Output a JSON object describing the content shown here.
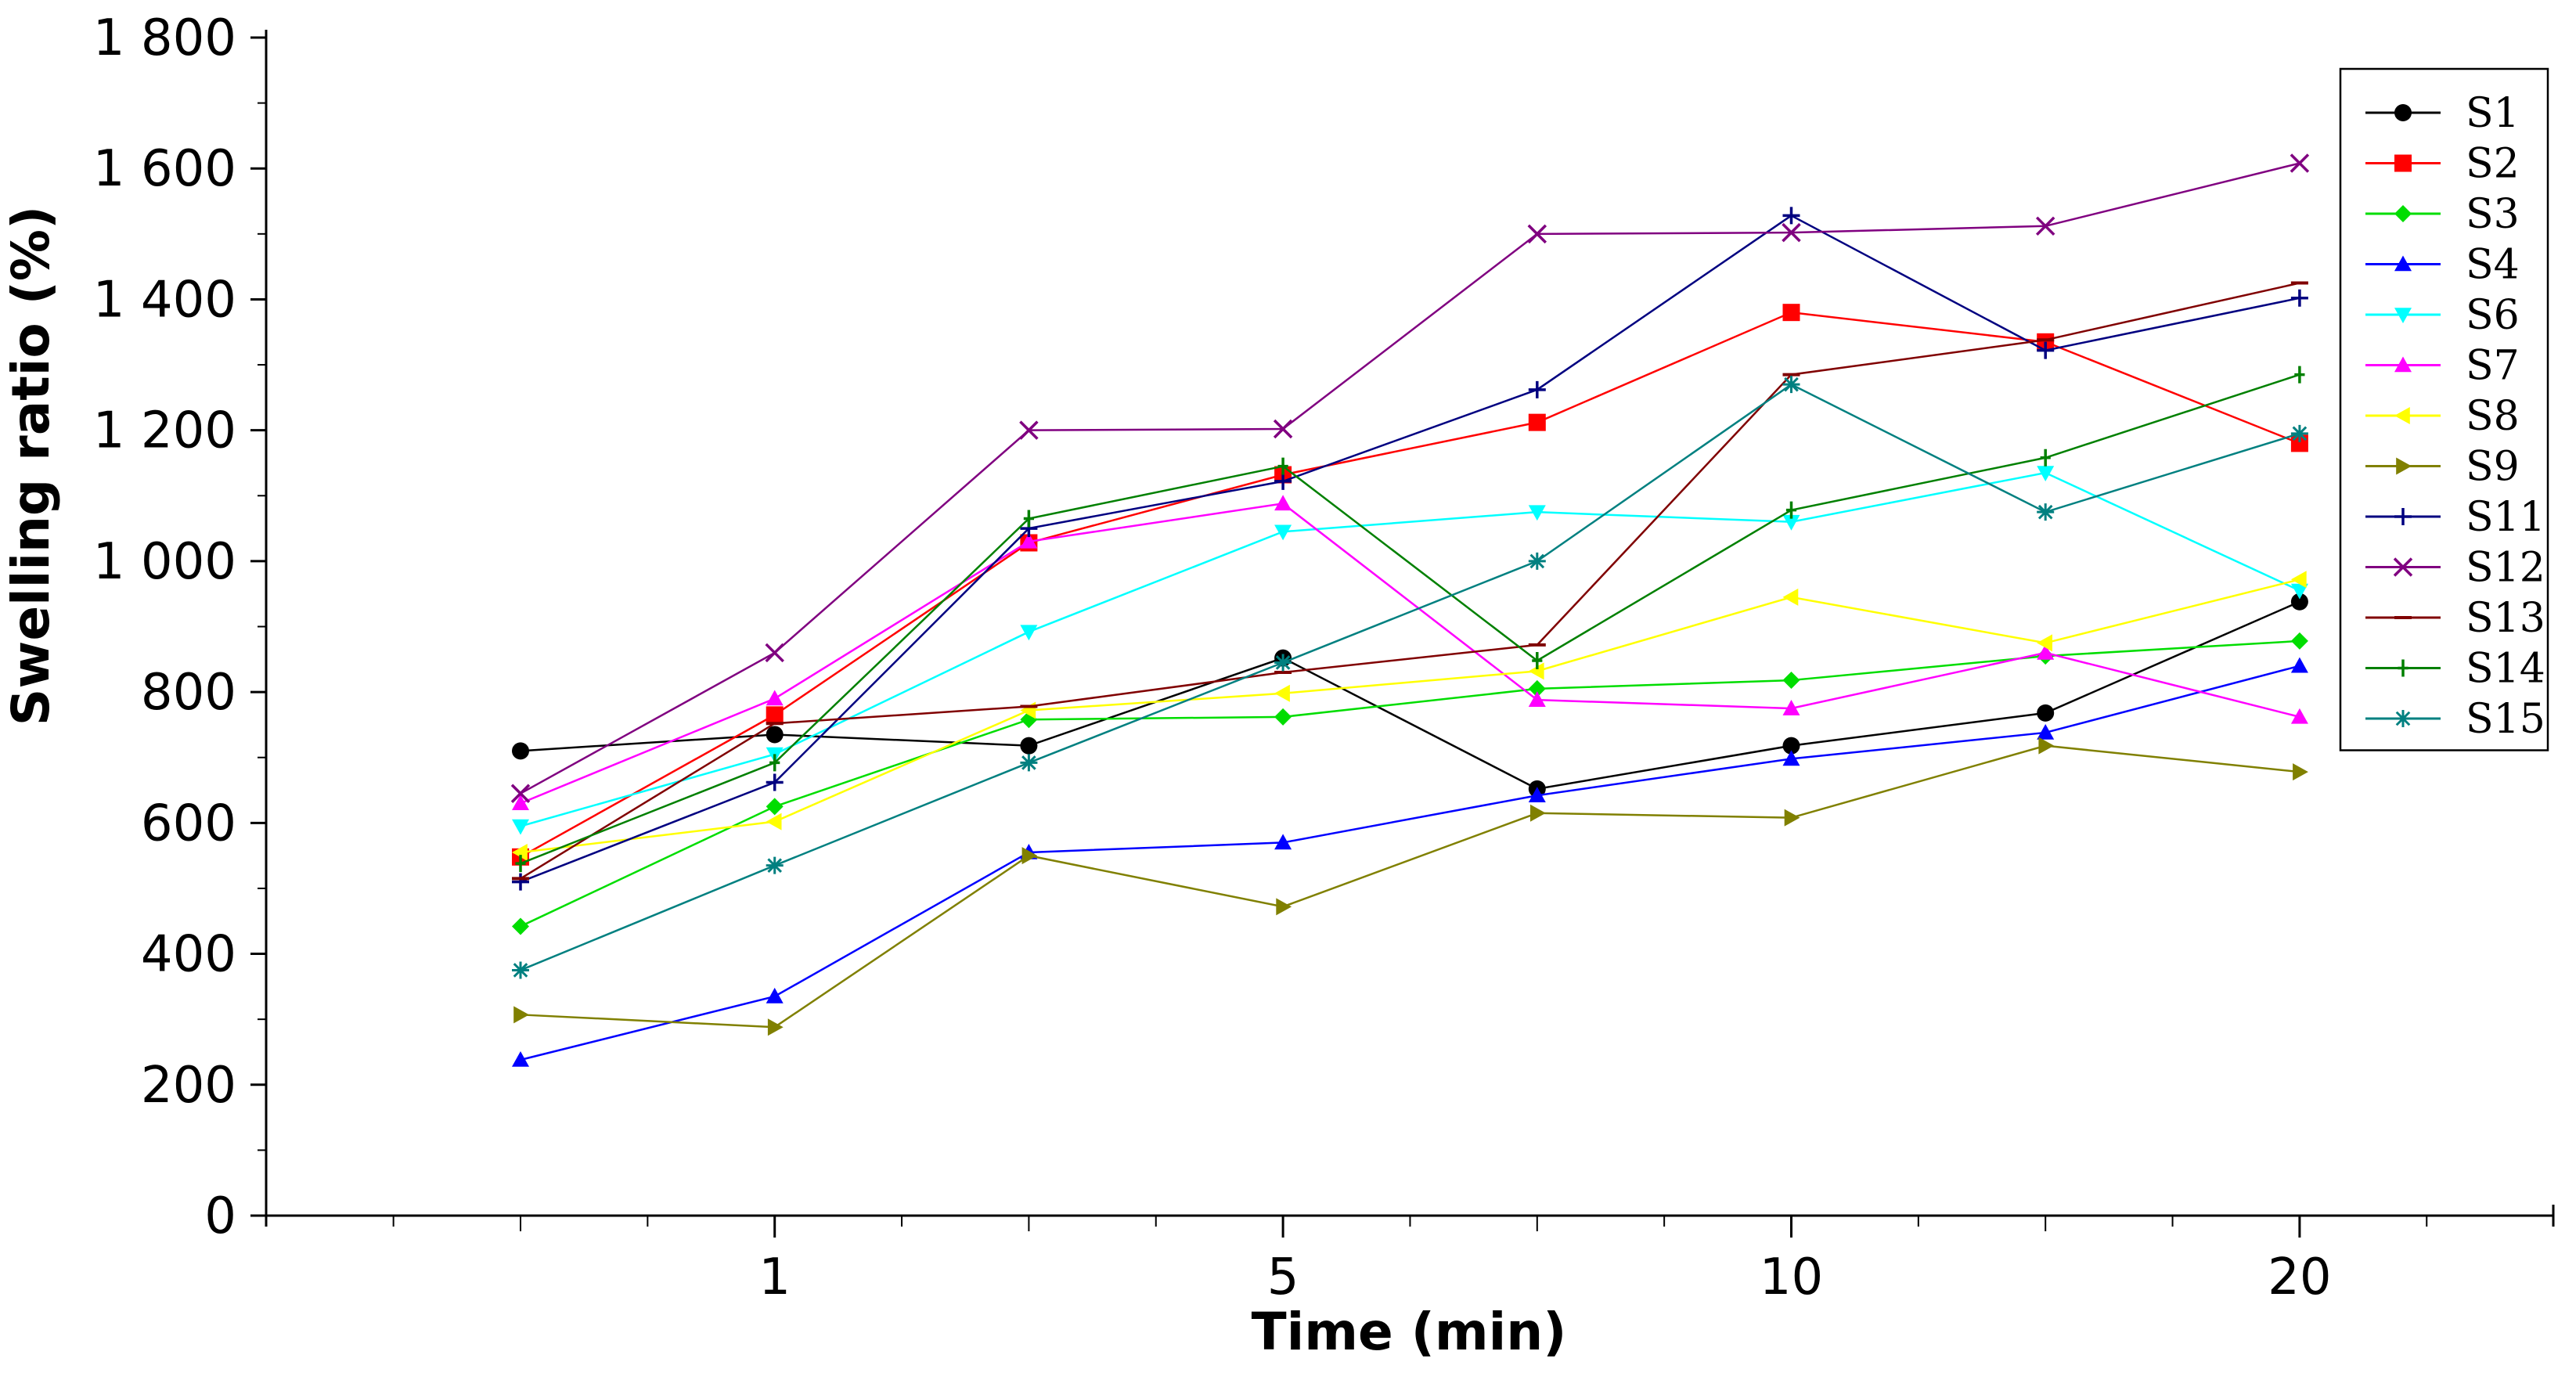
{
  "chart_data": {
    "type": "line",
    "title": "",
    "xlabel": "Time (min)",
    "ylabel": "Swelling ratio (%)",
    "ylim": [
      0,
      1800
    ],
    "ytick_values": [
      0,
      200,
      400,
      600,
      800,
      1000,
      1200,
      1400,
      1600,
      1800
    ],
    "ytick_labels": [
      "0",
      "200",
      "400",
      "600",
      "800",
      "1 000",
      "1 200",
      "1 400",
      "1 600",
      "1 800"
    ],
    "x_points": [
      "0.5",
      "1",
      "3",
      "5",
      "7",
      "10",
      "15",
      "20"
    ],
    "x_tick_labels": [
      "1",
      "5",
      "10",
      "20"
    ],
    "legend_position": "top-right",
    "series": [
      {
        "name": "S1",
        "color": "#000000",
        "marker": "circle",
        "values": [
          710,
          735,
          718,
          852,
          652,
          718,
          768,
          938
        ]
      },
      {
        "name": "S2",
        "color": "#ff0000",
        "marker": "square",
        "values": [
          548,
          765,
          1028,
          1132,
          1212,
          1380,
          1335,
          1180
        ]
      },
      {
        "name": "S3",
        "color": "#00dd00",
        "marker": "diamond",
        "values": [
          442,
          625,
          758,
          762,
          805,
          818,
          855,
          878
        ]
      },
      {
        "name": "S4",
        "color": "#0000ff",
        "marker": "triangle-up",
        "values": [
          238,
          335,
          555,
          570,
          642,
          698,
          738,
          840
        ]
      },
      {
        "name": "S6",
        "color": "#00ffff",
        "marker": "triangle-down",
        "values": [
          595,
          705,
          892,
          1045,
          1075,
          1060,
          1135,
          955
        ]
      },
      {
        "name": "S7",
        "color": "#ff00ff",
        "marker": "triangle-up",
        "values": [
          630,
          790,
          1030,
          1088,
          788,
          775,
          860,
          762
        ]
      },
      {
        "name": "S8",
        "color": "#ffff00",
        "marker": "triangle-left",
        "values": [
          555,
          602,
          772,
          798,
          832,
          945,
          875,
          972
        ]
      },
      {
        "name": "S9",
        "color": "#808000",
        "marker": "triangle-right",
        "values": [
          307,
          288,
          550,
          472,
          615,
          608,
          718,
          678
        ]
      },
      {
        "name": "S11",
        "color": "#000080",
        "marker": "plus",
        "values": [
          510,
          662,
          1050,
          1122,
          1262,
          1528,
          1322,
          1402
        ]
      },
      {
        "name": "S12",
        "color": "#800080",
        "marker": "x",
        "values": [
          645,
          860,
          1200,
          1202,
          1500,
          1502,
          1512,
          1608
        ]
      },
      {
        "name": "S13",
        "color": "#800000",
        "marker": "dash",
        "values": [
          515,
          752,
          778,
          830,
          872,
          1285,
          1338,
          1425
        ]
      },
      {
        "name": "S14",
        "color": "#008000",
        "marker": "vbar",
        "values": [
          538,
          692,
          1065,
          1145,
          848,
          1078,
          1158,
          1285
        ]
      },
      {
        "name": "S15",
        "color": "#008080",
        "marker": "star",
        "values": [
          375,
          535,
          692,
          845,
          1000,
          1270,
          1075,
          1195
        ]
      }
    ]
  }
}
